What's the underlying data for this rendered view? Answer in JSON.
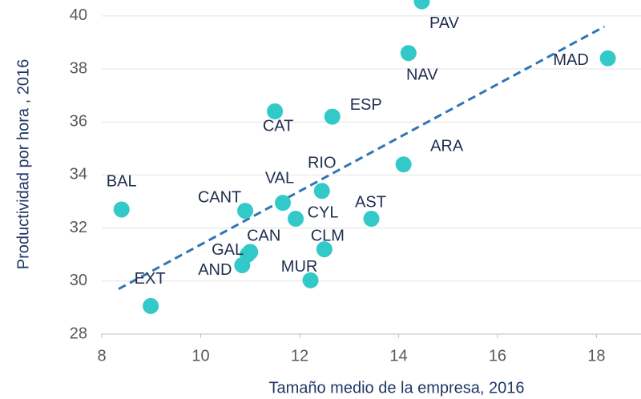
{
  "chart_data": {
    "type": "scatter",
    "x_label": "Tamaño medio de la empresa, 2016",
    "y_label": "Productividad por hora , 2016",
    "color": "#33c9c9",
    "labels": [
      "PAV",
      "NAV",
      "MAD",
      "CAT",
      "ESP",
      "ARA",
      "RIO",
      "VAL",
      "BAL",
      "CANT",
      "CYL",
      "AST",
      "CLM",
      "CAN",
      "GAL",
      "AND",
      "MUR",
      "EXT"
    ],
    "x": [
      14.47,
      14.2,
      18.23,
      11.5,
      12.66,
      14.1,
      12.45,
      11.66,
      8.4,
      10.9,
      11.92,
      13.45,
      12.5,
      11.0,
      10.95,
      10.84,
      12.22,
      8.99
    ],
    "y": [
      40.55,
      38.6,
      38.4,
      36.4,
      36.2,
      34.4,
      33.4,
      32.95,
      32.7,
      32.65,
      32.35,
      32.35,
      31.2,
      31.1,
      31.0,
      30.6,
      30.03,
      29.06
    ],
    "trendline": {
      "color": "#2e75b6",
      "x": [
        8.34,
        18.16
      ],
      "y": [
        29.7,
        39.6
      ]
    },
    "xlim": [
      8,
      18.9
    ],
    "xticks": [
      8,
      10,
      12,
      14,
      16,
      18
    ],
    "ylim": [
      28,
      40.6
    ],
    "yticks": [
      28,
      30,
      32,
      34,
      36,
      38,
      40
    ],
    "grid": true
  }
}
